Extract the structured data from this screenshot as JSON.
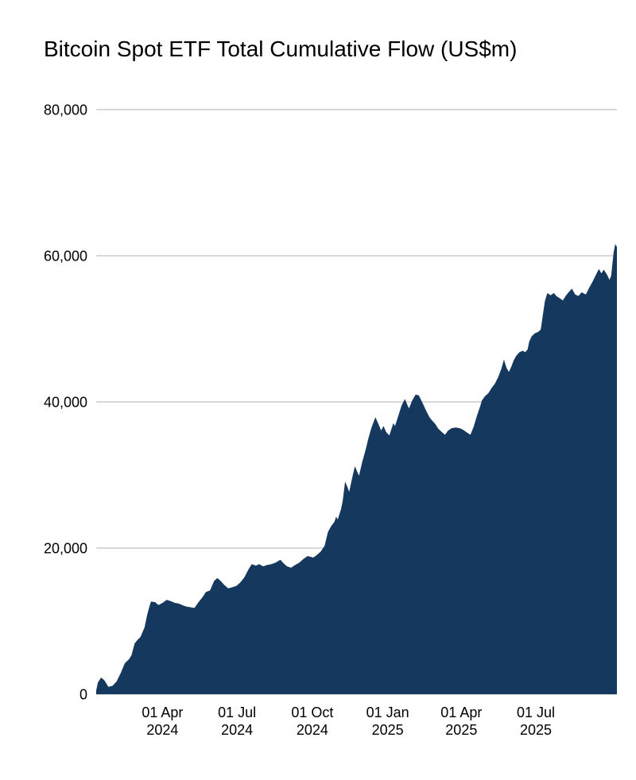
{
  "chart_data": {
    "type": "area",
    "title": "Bitcoin Spot ETF Total Cumulative Flow (US$m)",
    "xlabel": "",
    "ylabel": "",
    "ylim": [
      0,
      80000
    ],
    "grid": true,
    "legend": "none",
    "colors": {
      "area_fill": "#15395E",
      "gridline": "#CCCCCC",
      "text": "#000000",
      "background": "#FFFFFF"
    },
    "y_ticks": [
      {
        "value": 80000,
        "label": "80,000"
      },
      {
        "value": 60000,
        "label": "60,000"
      },
      {
        "value": 40000,
        "label": "40,000"
      },
      {
        "value": 20000,
        "label": "20,000"
      },
      {
        "value": 0,
        "label": "0"
      }
    ],
    "x_ticks": [
      {
        "date": "2024-04-01",
        "line1": "01 Apr",
        "line2": "2024"
      },
      {
        "date": "2024-07-01",
        "line1": "01 Jul",
        "line2": "2024"
      },
      {
        "date": "2024-10-01",
        "line1": "01 Oct",
        "line2": "2024"
      },
      {
        "date": "2025-01-01",
        "line1": "01 Jan",
        "line2": "2025"
      },
      {
        "date": "2025-04-01",
        "line1": "01 Apr",
        "line2": "2025"
      },
      {
        "date": "2025-07-01",
        "line1": "01 Jul",
        "line2": "2025"
      }
    ],
    "x_range": {
      "start": "2024-01-11",
      "end": "2025-10-08"
    },
    "series": [
      {
        "name": "Total cumulative flow (US$m)",
        "points": [
          [
            "2024-01-11",
            500
          ],
          [
            "2024-01-13",
            1600
          ],
          [
            "2024-01-17",
            2280
          ],
          [
            "2024-01-21",
            1900
          ],
          [
            "2024-01-26",
            1000
          ],
          [
            "2024-01-31",
            1150
          ],
          [
            "2024-02-05",
            1750
          ],
          [
            "2024-02-10",
            2900
          ],
          [
            "2024-02-15",
            4240
          ],
          [
            "2024-02-20",
            4780
          ],
          [
            "2024-02-23",
            5300
          ],
          [
            "2024-02-27",
            6960
          ],
          [
            "2024-03-02",
            7500
          ],
          [
            "2024-03-05",
            7830
          ],
          [
            "2024-03-10",
            9130
          ],
          [
            "2024-03-13",
            10760
          ],
          [
            "2024-03-16",
            12000
          ],
          [
            "2024-03-18",
            12700
          ],
          [
            "2024-03-23",
            12600
          ],
          [
            "2024-03-27",
            12200
          ],
          [
            "2024-04-01",
            12500
          ],
          [
            "2024-04-06",
            12900
          ],
          [
            "2024-04-11",
            12750
          ],
          [
            "2024-04-16",
            12500
          ],
          [
            "2024-04-21",
            12400
          ],
          [
            "2024-04-25",
            12200
          ],
          [
            "2024-04-30",
            12000
          ],
          [
            "2024-05-05",
            11900
          ],
          [
            "2024-05-10",
            11800
          ],
          [
            "2024-05-15",
            12600
          ],
          [
            "2024-05-20",
            13300
          ],
          [
            "2024-05-24",
            14000
          ],
          [
            "2024-05-29",
            14200
          ],
          [
            "2024-06-03",
            15500
          ],
          [
            "2024-06-07",
            15900
          ],
          [
            "2024-06-11",
            15500
          ],
          [
            "2024-06-15",
            15000
          ],
          [
            "2024-06-20",
            14500
          ],
          [
            "2024-06-24",
            14600
          ],
          [
            "2024-06-30",
            14800
          ],
          [
            "2024-07-05",
            15300
          ],
          [
            "2024-07-10",
            16000
          ],
          [
            "2024-07-15",
            17100
          ],
          [
            "2024-07-19",
            17800
          ],
          [
            "2024-07-24",
            17600
          ],
          [
            "2024-07-28",
            17800
          ],
          [
            "2024-08-02",
            17500
          ],
          [
            "2024-08-07",
            17700
          ],
          [
            "2024-08-12",
            17800
          ],
          [
            "2024-08-17",
            18000
          ],
          [
            "2024-08-23",
            18400
          ],
          [
            "2024-08-27",
            17900
          ],
          [
            "2024-08-31",
            17500
          ],
          [
            "2024-09-05",
            17300
          ],
          [
            "2024-09-10",
            17700
          ],
          [
            "2024-09-15",
            18000
          ],
          [
            "2024-09-20",
            18500
          ],
          [
            "2024-09-25",
            18900
          ],
          [
            "2024-09-29",
            18800
          ],
          [
            "2024-10-02",
            18700
          ],
          [
            "2024-10-06",
            19000
          ],
          [
            "2024-10-11",
            19500
          ],
          [
            "2024-10-16",
            20300
          ],
          [
            "2024-10-20",
            22200
          ],
          [
            "2024-10-24",
            23000
          ],
          [
            "2024-10-28",
            23600
          ],
          [
            "2024-10-30",
            24300
          ],
          [
            "2024-11-01",
            23900
          ],
          [
            "2024-11-05",
            25300
          ],
          [
            "2024-11-07",
            26400
          ],
          [
            "2024-11-10",
            29100
          ],
          [
            "2024-11-13",
            28300
          ],
          [
            "2024-11-15",
            27700
          ],
          [
            "2024-11-19",
            29800
          ],
          [
            "2024-11-22",
            31200
          ],
          [
            "2024-11-25",
            30400
          ],
          [
            "2024-11-27",
            29900
          ],
          [
            "2024-12-01",
            31800
          ],
          [
            "2024-12-05",
            33400
          ],
          [
            "2024-12-08",
            34800
          ],
          [
            "2024-12-12",
            36400
          ],
          [
            "2024-12-17",
            37900
          ],
          [
            "2024-12-21",
            36900
          ],
          [
            "2024-12-24",
            36100
          ],
          [
            "2024-12-27",
            36700
          ],
          [
            "2024-12-30",
            35900
          ],
          [
            "2025-01-03",
            35400
          ],
          [
            "2025-01-08",
            37100
          ],
          [
            "2025-01-10",
            36700
          ],
          [
            "2025-01-14",
            38100
          ],
          [
            "2025-01-18",
            39500
          ],
          [
            "2025-01-22",
            40400
          ],
          [
            "2025-01-25",
            39600
          ],
          [
            "2025-01-27",
            39100
          ],
          [
            "2025-01-31",
            40200
          ],
          [
            "2025-02-04",
            41000
          ],
          [
            "2025-02-08",
            40900
          ],
          [
            "2025-02-12",
            40000
          ],
          [
            "2025-02-17",
            38800
          ],
          [
            "2025-02-21",
            37900
          ],
          [
            "2025-02-24",
            37500
          ],
          [
            "2025-02-28",
            37000
          ],
          [
            "2025-03-04",
            36300
          ],
          [
            "2025-03-08",
            35900
          ],
          [
            "2025-03-12",
            35500
          ],
          [
            "2025-03-16",
            36100
          ],
          [
            "2025-03-20",
            36400
          ],
          [
            "2025-03-25",
            36500
          ],
          [
            "2025-03-30",
            36400
          ],
          [
            "2025-04-03",
            36200
          ],
          [
            "2025-04-08",
            35800
          ],
          [
            "2025-04-12",
            35500
          ],
          [
            "2025-04-16",
            36600
          ],
          [
            "2025-04-20",
            38100
          ],
          [
            "2025-04-24",
            39400
          ],
          [
            "2025-04-26",
            40200
          ],
          [
            "2025-04-30",
            40800
          ],
          [
            "2025-05-04",
            41200
          ],
          [
            "2025-05-08",
            41900
          ],
          [
            "2025-05-12",
            42500
          ],
          [
            "2025-05-16",
            43400
          ],
          [
            "2025-05-20",
            44600
          ],
          [
            "2025-05-23",
            45800
          ],
          [
            "2025-05-26",
            44700
          ],
          [
            "2025-05-29",
            44100
          ],
          [
            "2025-06-01",
            44800
          ],
          [
            "2025-06-04",
            45700
          ],
          [
            "2025-06-07",
            46300
          ],
          [
            "2025-06-11",
            46800
          ],
          [
            "2025-06-15",
            47000
          ],
          [
            "2025-06-18",
            46800
          ],
          [
            "2025-06-21",
            47200
          ],
          [
            "2025-06-23",
            48300
          ],
          [
            "2025-06-26",
            49000
          ],
          [
            "2025-06-30",
            49400
          ],
          [
            "2025-07-04",
            49600
          ],
          [
            "2025-07-07",
            49900
          ],
          [
            "2025-07-09",
            51500
          ],
          [
            "2025-07-12",
            53800
          ],
          [
            "2025-07-15",
            54900
          ],
          [
            "2025-07-19",
            54600
          ],
          [
            "2025-07-23",
            54900
          ],
          [
            "2025-07-26",
            54500
          ],
          [
            "2025-07-30",
            54200
          ],
          [
            "2025-08-03",
            53900
          ],
          [
            "2025-08-07",
            54600
          ],
          [
            "2025-08-10",
            55000
          ],
          [
            "2025-08-14",
            55500
          ],
          [
            "2025-08-18",
            54700
          ],
          [
            "2025-08-22",
            54500
          ],
          [
            "2025-08-26",
            55000
          ],
          [
            "2025-08-31",
            54700
          ],
          [
            "2025-09-04",
            55600
          ],
          [
            "2025-09-08",
            56400
          ],
          [
            "2025-09-12",
            57300
          ],
          [
            "2025-09-16",
            58200
          ],
          [
            "2025-09-19",
            57600
          ],
          [
            "2025-09-22",
            58100
          ],
          [
            "2025-09-26",
            57400
          ],
          [
            "2025-09-29",
            56700
          ],
          [
            "2025-10-01",
            57300
          ],
          [
            "2025-10-04",
            60500
          ],
          [
            "2025-10-06",
            61600
          ],
          [
            "2025-10-08",
            61200
          ]
        ]
      }
    ]
  }
}
